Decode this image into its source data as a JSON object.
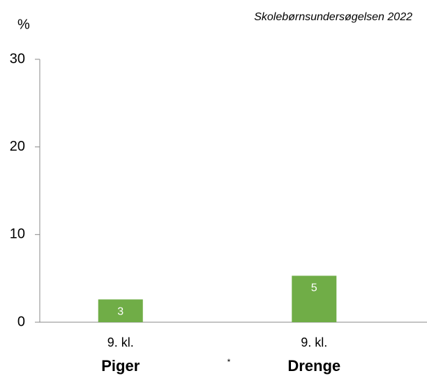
{
  "chart_data": {
    "type": "bar",
    "subtitle": "Skolebørnsundersøgelsen 2022",
    "y_label": "%",
    "categories": [
      "9. kl.",
      "9. kl."
    ],
    "groups": [
      "Piger",
      "Drenge"
    ],
    "values": [
      2.6,
      5.3
    ],
    "value_labels": [
      "3",
      "5"
    ],
    "color": "#70ad47",
    "ylim": [
      0,
      30
    ],
    "yticks": [
      0,
      10,
      20,
      30
    ],
    "grid": false,
    "annotation": "*"
  }
}
